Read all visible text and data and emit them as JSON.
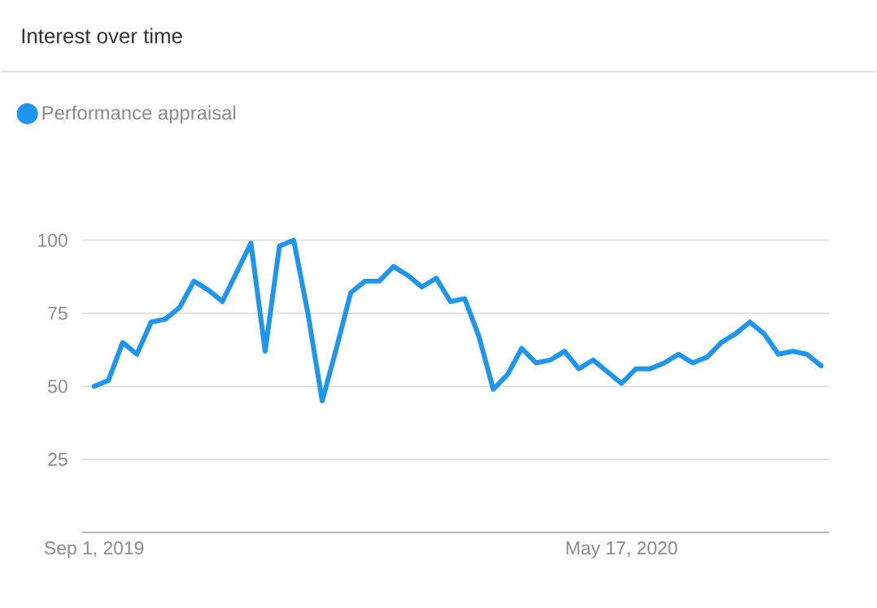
{
  "chart_data": {
    "type": "line",
    "title": "Interest over time",
    "x": [
      "2019-09-01",
      "2019-09-08",
      "2019-09-15",
      "2019-09-22",
      "2019-09-29",
      "2019-10-06",
      "2019-10-13",
      "2019-10-20",
      "2019-10-27",
      "2019-11-03",
      "2019-11-10",
      "2019-11-17",
      "2019-11-24",
      "2019-12-01",
      "2019-12-08",
      "2019-12-15",
      "2019-12-22",
      "2019-12-29",
      "2020-01-05",
      "2020-01-12",
      "2020-01-19",
      "2020-01-26",
      "2020-02-02",
      "2020-02-09",
      "2020-02-16",
      "2020-02-23",
      "2020-03-01",
      "2020-03-08",
      "2020-03-15",
      "2020-03-22",
      "2020-03-29",
      "2020-04-05",
      "2020-04-12",
      "2020-04-19",
      "2020-04-26",
      "2020-05-03",
      "2020-05-10",
      "2020-05-17",
      "2020-05-24",
      "2020-05-31",
      "2020-06-07",
      "2020-06-14",
      "2020-06-21",
      "2020-06-28",
      "2020-07-05",
      "2020-07-12",
      "2020-07-19",
      "2020-07-26",
      "2020-08-02",
      "2020-08-09",
      "2020-08-16",
      "2020-08-23"
    ],
    "series": [
      {
        "name": "Performance appraisal",
        "color": "#1e96ef",
        "values": [
          50,
          52,
          65,
          61,
          72,
          73,
          77,
          86,
          83,
          79,
          89,
          99,
          62,
          98,
          100,
          75,
          45,
          63,
          82,
          86,
          86,
          91,
          88,
          84,
          87,
          79,
          80,
          67,
          49,
          54,
          63,
          58,
          59,
          62,
          56,
          59,
          55,
          51,
          56,
          56,
          58,
          61,
          58,
          60,
          65,
          68,
          72,
          68,
          61,
          62,
          61,
          57
        ]
      }
    ],
    "xlim": [
      "2019-08-26",
      "2020-08-27"
    ],
    "xticks": [
      {
        "value": "2019-09-01",
        "label": "Sep 1, 2019"
      },
      {
        "value": "2020-05-17",
        "label": "May 17, 2020"
      }
    ],
    "ylim": [
      0,
      100
    ],
    "yticks": [
      25,
      50,
      75,
      100
    ],
    "grid": "y",
    "legend": "top left"
  }
}
